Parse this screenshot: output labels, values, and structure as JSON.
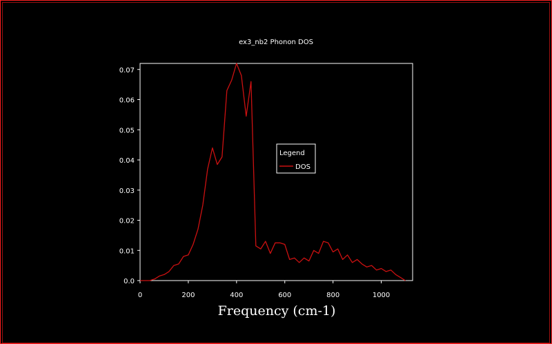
{
  "chart_data": {
    "type": "line",
    "title": "ex3_nb2 Phonon DOS",
    "xlabel": "Frequency (cm-1)",
    "ylabel": "",
    "xlim": [
      0,
      1130
    ],
    "ylim": [
      0,
      0.072
    ],
    "xticks": [
      0,
      200,
      400,
      600,
      800,
      1000
    ],
    "yticks": [
      0.0,
      0.01,
      0.02,
      0.03,
      0.04,
      0.05,
      0.06,
      0.07
    ],
    "ytick_labels": [
      "0.0",
      "0.01",
      "0.02",
      "0.03",
      "0.04",
      "0.05",
      "0.06",
      "0.07"
    ],
    "xtick_labels": [
      "0",
      "200",
      "400",
      "600",
      "800",
      "1000"
    ],
    "grid": false,
    "legend": {
      "title": "Legend",
      "placement": "center-right"
    },
    "colors": {
      "background": "#000000",
      "axes": "#ffffff",
      "series": "#cc1111",
      "frame": "#ff2020"
    },
    "series": [
      {
        "name": "DOS",
        "x": [
          0,
          40,
          60,
          80,
          100,
          120,
          140,
          160,
          180,
          200,
          220,
          240,
          260,
          280,
          300,
          320,
          340,
          360,
          380,
          400,
          420,
          440,
          460,
          480,
          500,
          520,
          540,
          560,
          580,
          600,
          620,
          640,
          660,
          680,
          700,
          720,
          740,
          760,
          780,
          800,
          820,
          840,
          860,
          880,
          900,
          920,
          940,
          960,
          980,
          1000,
          1020,
          1040,
          1060,
          1080,
          1100
        ],
        "y": [
          0.0,
          0.0,
          0.0005,
          0.0015,
          0.002,
          0.003,
          0.005,
          0.0055,
          0.008,
          0.0085,
          0.012,
          0.017,
          0.025,
          0.037,
          0.044,
          0.0385,
          0.041,
          0.063,
          0.0665,
          0.072,
          0.068,
          0.0545,
          0.066,
          0.0115,
          0.0105,
          0.013,
          0.009,
          0.0125,
          0.0125,
          0.012,
          0.007,
          0.0075,
          0.006,
          0.0075,
          0.0065,
          0.01,
          0.009,
          0.013,
          0.0125,
          0.0095,
          0.0105,
          0.007,
          0.0085,
          0.006,
          0.007,
          0.0055,
          0.0045,
          0.005,
          0.0035,
          0.004,
          0.003,
          0.0035,
          0.002,
          0.001,
          0.0
        ]
      }
    ]
  }
}
